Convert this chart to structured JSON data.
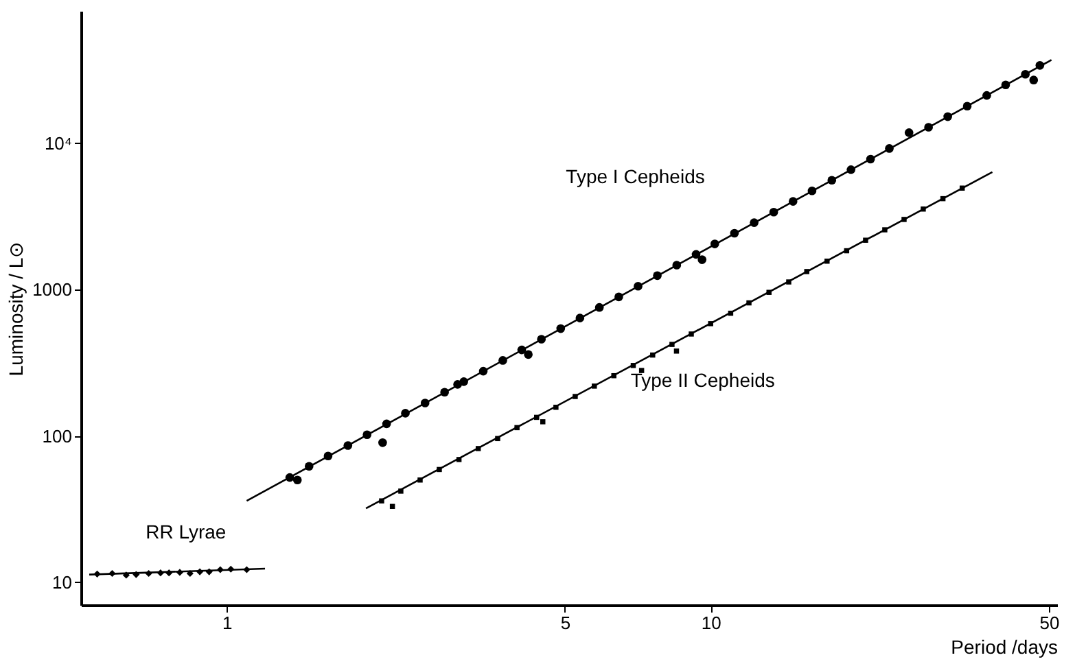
{
  "chart_data": {
    "type": "scatter",
    "xlabel": "Period /days",
    "ylabel": "Luminosity / L⊙",
    "log": "xy",
    "grid": false,
    "xlim": [
      0.5,
      52
    ],
    "xticks": [
      1,
      5,
      10,
      50
    ],
    "ylim": [
      7,
      80000
    ],
    "yticks": [
      10,
      100,
      1000,
      {
        "value": 10000,
        "label": "10⁴"
      }
    ],
    "series": [
      {
        "type": "line",
        "color": "#000000",
        "x": [
          0.52,
          1.2
        ],
        "values": [
          11.3,
          12.4
        ]
      },
      {
        "type": "line",
        "color": "#000000",
        "x": [
          1.1,
          50.6
        ],
        "values": [
          36,
          37000
        ]
      },
      {
        "type": "line",
        "color": "#000000",
        "x": [
          1.94,
          38.2
        ],
        "values": [
          32,
          6350
        ]
      },
      {
        "marker": "diamond",
        "color": "#000000",
        "x": [
          0.54,
          0.58,
          0.62,
          0.65,
          0.69,
          0.73,
          0.76,
          0.8,
          0.84,
          0.88,
          0.92,
          0.97,
          1.02,
          1.1
        ],
        "values": [
          11.4,
          11.5,
          11.2,
          11.3,
          11.5,
          11.6,
          11.6,
          11.7,
          11.5,
          11.8,
          11.8,
          12.2,
          12.3,
          12.2
        ]
      },
      {
        "marker": "circle",
        "color": "#000000",
        "x": [
          1.35,
          1.4,
          1.48,
          1.62,
          1.78,
          1.95,
          2.1,
          2.14,
          2.34,
          2.57,
          2.82,
          3.0,
          3.09,
          3.39,
          3.72,
          4.07,
          4.2,
          4.47,
          4.9,
          5.37,
          5.89,
          6.46,
          7.08,
          7.76,
          8.51,
          9.33,
          9.6,
          10.2,
          11.2,
          12.3,
          13.5,
          14.8,
          16.2,
          17.8,
          19.5,
          21.4,
          23.4,
          25.7,
          28.2,
          30.9,
          33.9,
          37.2,
          40.7,
          44.7,
          46.5,
          47.9
        ],
        "values": [
          52,
          50,
          62,
          73,
          86,
          102,
          90,
          121,
          143,
          168,
          199,
          225,
          235,
          277,
          328,
          387,
          360,
          458,
          541,
          639,
          755,
          891,
          1054,
          1245,
          1469,
          1738,
          1600,
          2051,
          2427,
          2864,
          3381,
          4000,
          4721,
          5585,
          6592,
          7780,
          9204,
          11800,
          12853,
          15171,
          17906,
          21184,
          25003,
          29580,
          27000,
          34000
        ]
      },
      {
        "marker": "square",
        "color": "#000000",
        "x": [
          2.09,
          2.2,
          2.29,
          2.51,
          2.75,
          3.02,
          3.31,
          3.63,
          3.98,
          4.37,
          4.5,
          4.79,
          5.25,
          5.75,
          6.31,
          6.92,
          7.2,
          7.59,
          8.32,
          8.5,
          9.12,
          10,
          11,
          12,
          13.2,
          14.5,
          15.8,
          17.4,
          19.1,
          20.9,
          22.9,
          25.1,
          27.5,
          30.2,
          33.1
        ],
        "values": [
          36,
          33,
          42,
          50,
          59,
          69,
          82,
          96,
          114,
          134,
          125,
          157,
          186,
          219,
          258,
          303,
          280,
          357,
          422,
          380,
          497,
          585,
          689,
          811,
          957,
          1127,
          1327,
          1563,
          1841,
          2173,
          2559,
          3013,
          3548,
          4178,
          4932
        ]
      }
    ],
    "annotations": [
      "RR Lyrae",
      "Type I Cepheids",
      "Type II Cepheids"
    ]
  }
}
